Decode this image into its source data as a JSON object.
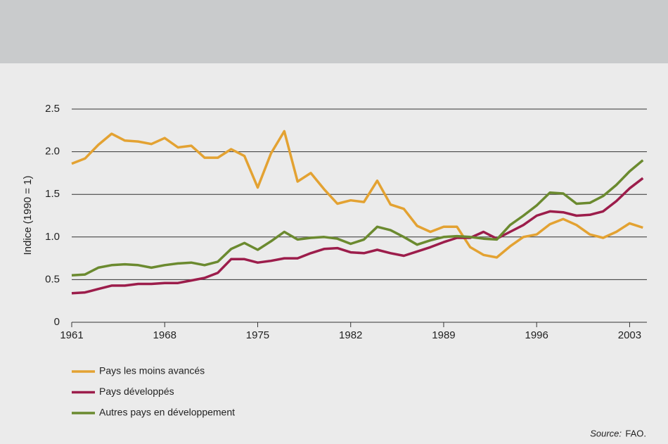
{
  "chart_data": {
    "type": "line",
    "y_label": "Indice (1990 = 1)",
    "source_label": "Source:",
    "source": "FAO.",
    "x": [
      1961,
      1962,
      1963,
      1964,
      1965,
      1966,
      1967,
      1968,
      1969,
      1970,
      1971,
      1972,
      1973,
      1974,
      1975,
      1976,
      1977,
      1978,
      1979,
      1980,
      1981,
      1982,
      1983,
      1984,
      1985,
      1986,
      1987,
      1988,
      1989,
      1990,
      1991,
      1992,
      1993,
      1994,
      1995,
      1996,
      1997,
      1998,
      1999,
      2000,
      2001,
      2002,
      2003,
      2004
    ],
    "series": [
      {
        "name": "Pays les moins avancés",
        "color": "#e3a232",
        "values": [
          1.86,
          1.92,
          2.08,
          2.21,
          2.13,
          2.12,
          2.09,
          2.16,
          2.05,
          2.07,
          1.93,
          1.93,
          2.03,
          1.95,
          1.58,
          1.98,
          2.24,
          1.65,
          1.75,
          1.56,
          1.39,
          1.43,
          1.41,
          1.66,
          1.38,
          1.33,
          1.13,
          1.06,
          1.12,
          1.12,
          0.88,
          0.79,
          0.76,
          0.89,
          1.0,
          1.03,
          1.15,
          1.21,
          1.14,
          1.03,
          0.99,
          1.06,
          1.16,
          1.11
        ]
      },
      {
        "name": "Pays développés",
        "color": "#9c1d4b",
        "values": [
          0.34,
          0.35,
          0.39,
          0.43,
          0.43,
          0.45,
          0.45,
          0.46,
          0.46,
          0.49,
          0.52,
          0.58,
          0.74,
          0.74,
          0.7,
          0.72,
          0.75,
          0.75,
          0.81,
          0.86,
          0.87,
          0.82,
          0.81,
          0.85,
          0.81,
          0.78,
          0.83,
          0.88,
          0.94,
          0.99,
          0.99,
          1.06,
          0.98,
          1.06,
          1.14,
          1.25,
          1.3,
          1.29,
          1.25,
          1.26,
          1.3,
          1.42,
          1.57,
          1.69
        ]
      },
      {
        "name": "Autres pays en développement",
        "color": "#6b8a2f",
        "values": [
          0.55,
          0.56,
          0.64,
          0.67,
          0.68,
          0.67,
          0.64,
          0.67,
          0.69,
          0.7,
          0.67,
          0.71,
          0.86,
          0.93,
          0.85,
          0.95,
          1.06,
          0.97,
          0.99,
          1.0,
          0.98,
          0.92,
          0.97,
          1.12,
          1.08,
          1.0,
          0.91,
          0.96,
          1.0,
          1.01,
          1.0,
          0.98,
          0.97,
          1.14,
          1.25,
          1.37,
          1.52,
          1.51,
          1.39,
          1.4,
          1.48,
          1.61,
          1.77,
          1.9
        ]
      }
    ],
    "xlim": [
      1961,
      2004.3
    ],
    "xticks": [
      1961,
      1968,
      1975,
      1982,
      1989,
      1996,
      2003
    ],
    "ylim": [
      0,
      2.5
    ],
    "yticks": [
      0,
      0.5,
      {
        "value": 1,
        "label": "1.0"
      },
      1.5,
      {
        "value": 2,
        "label": "2.0"
      },
      2.5
    ],
    "grid": true
  }
}
